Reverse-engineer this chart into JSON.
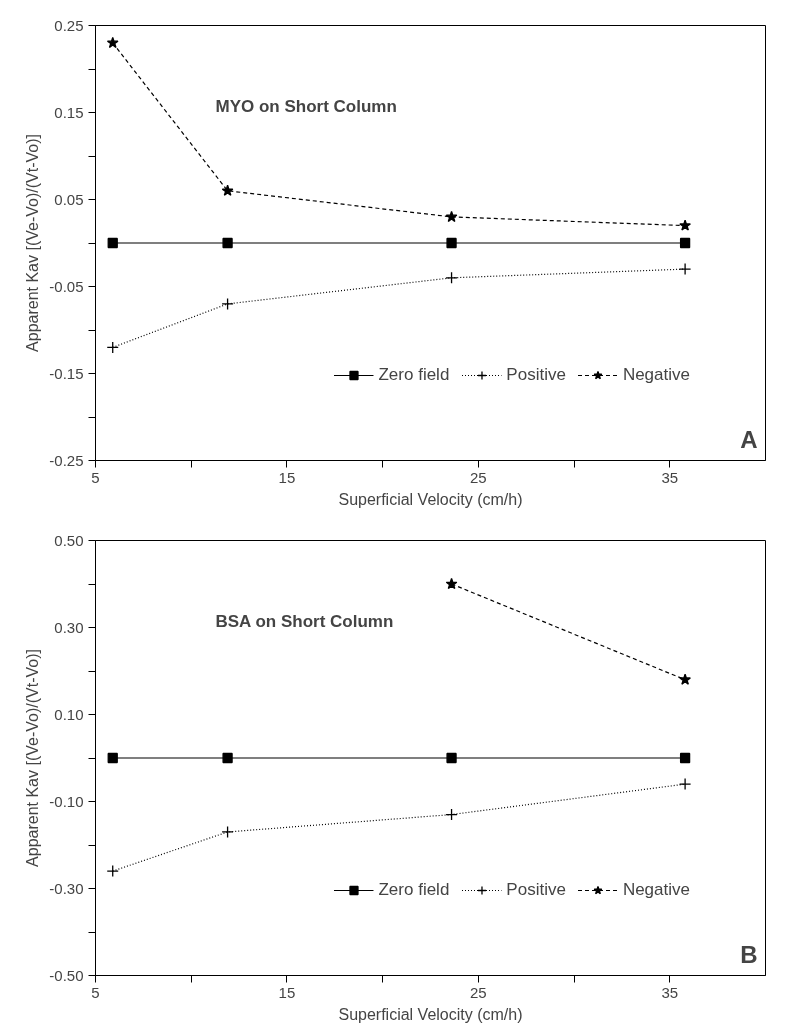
{
  "chart_data": [
    {
      "type": "line",
      "xlabel": "Superficial Velocity (cm/h)",
      "ylabel": "Apparent Kav [(Ve-Vo)/(Vt-Vo)]",
      "annotations": [
        "MYO on Short Column",
        "A"
      ],
      "x": [
        5.9,
        11.9,
        23.6,
        35.8
      ],
      "xlim": [
        5,
        40
      ],
      "xticks": [
        5,
        {
          "value": 10,
          "label": null
        },
        15,
        {
          "value": 20,
          "label": null
        },
        25,
        {
          "value": 30,
          "label": null
        },
        35
      ],
      "ylim": [
        -0.25,
        0.25
      ],
      "yticks": [
        -0.25,
        {
          "value": -0.2,
          "label": null
        },
        -0.15,
        {
          "value": -0.1,
          "label": null
        },
        -0.05,
        {
          "value": 0,
          "label": null
        },
        0.05,
        {
          "value": 0.1,
          "label": null
        },
        0.15,
        {
          "value": 0.2,
          "label": null
        },
        0.25
      ],
      "grid": false,
      "legend": "bottom right",
      "series": [
        {
          "name": "Zero field",
          "color": "#000000",
          "marker": "square",
          "line_style": "solid",
          "values": [
            0,
            0,
            0,
            0
          ]
        },
        {
          "name": "Positive",
          "color": "#000000",
          "marker": "cross",
          "line_style": "dotted",
          "values": [
            -0.12,
            -0.07,
            -0.04,
            -0.03
          ]
        },
        {
          "name": "Negative",
          "color": "#000000",
          "marker": "star",
          "line_style": "dashed",
          "values": [
            0.23,
            0.06,
            0.03,
            0.02
          ]
        }
      ]
    },
    {
      "type": "line",
      "xlabel": "Superficial Velocity (cm/h)",
      "ylabel": "Apparent Kav [(Ve-Vo)/(Vt-Vo)]",
      "annotations": [
        "BSA on Short Column",
        "B"
      ],
      "x": [
        5.9,
        11.9,
        23.6,
        35.8
      ],
      "xlim": [
        5,
        40
      ],
      "xticks": [
        5,
        {
          "value": 10,
          "label": null
        },
        15,
        {
          "value": 20,
          "label": null
        },
        25,
        {
          "value": 30,
          "label": null
        },
        35
      ],
      "ylim": [
        -0.5,
        0.5
      ],
      "yticks": [
        {
          "value": -0.5,
          "label": "-0.50"
        },
        {
          "value": -0.4,
          "label": null
        },
        {
          "value": -0.3,
          "label": "-0.30"
        },
        {
          "value": -0.2,
          "label": null
        },
        {
          "value": -0.1,
          "label": "-0.10"
        },
        {
          "value": 0,
          "label": null
        },
        {
          "value": 0.1,
          "label": "0.10"
        },
        {
          "value": 0.2,
          "label": null
        },
        {
          "value": 0.3,
          "label": "0.30"
        },
        {
          "value": 0.4,
          "label": null
        },
        {
          "value": 0.5,
          "label": "0.50"
        }
      ],
      "grid": false,
      "legend": "bottom right",
      "series": [
        {
          "name": "Zero field",
          "color": "#000000",
          "marker": "square",
          "line_style": "solid",
          "values": [
            0,
            0,
            0,
            0
          ]
        },
        {
          "name": "Positive",
          "color": "#000000",
          "marker": "cross",
          "line_style": "dotted",
          "values": [
            -0.26,
            -0.17,
            -0.13,
            -0.06
          ]
        },
        {
          "name": "Negative",
          "color": "#000000",
          "marker": "star",
          "line_style": "dashed",
          "values": [
            null,
            null,
            0.4,
            0.18
          ]
        }
      ]
    }
  ]
}
